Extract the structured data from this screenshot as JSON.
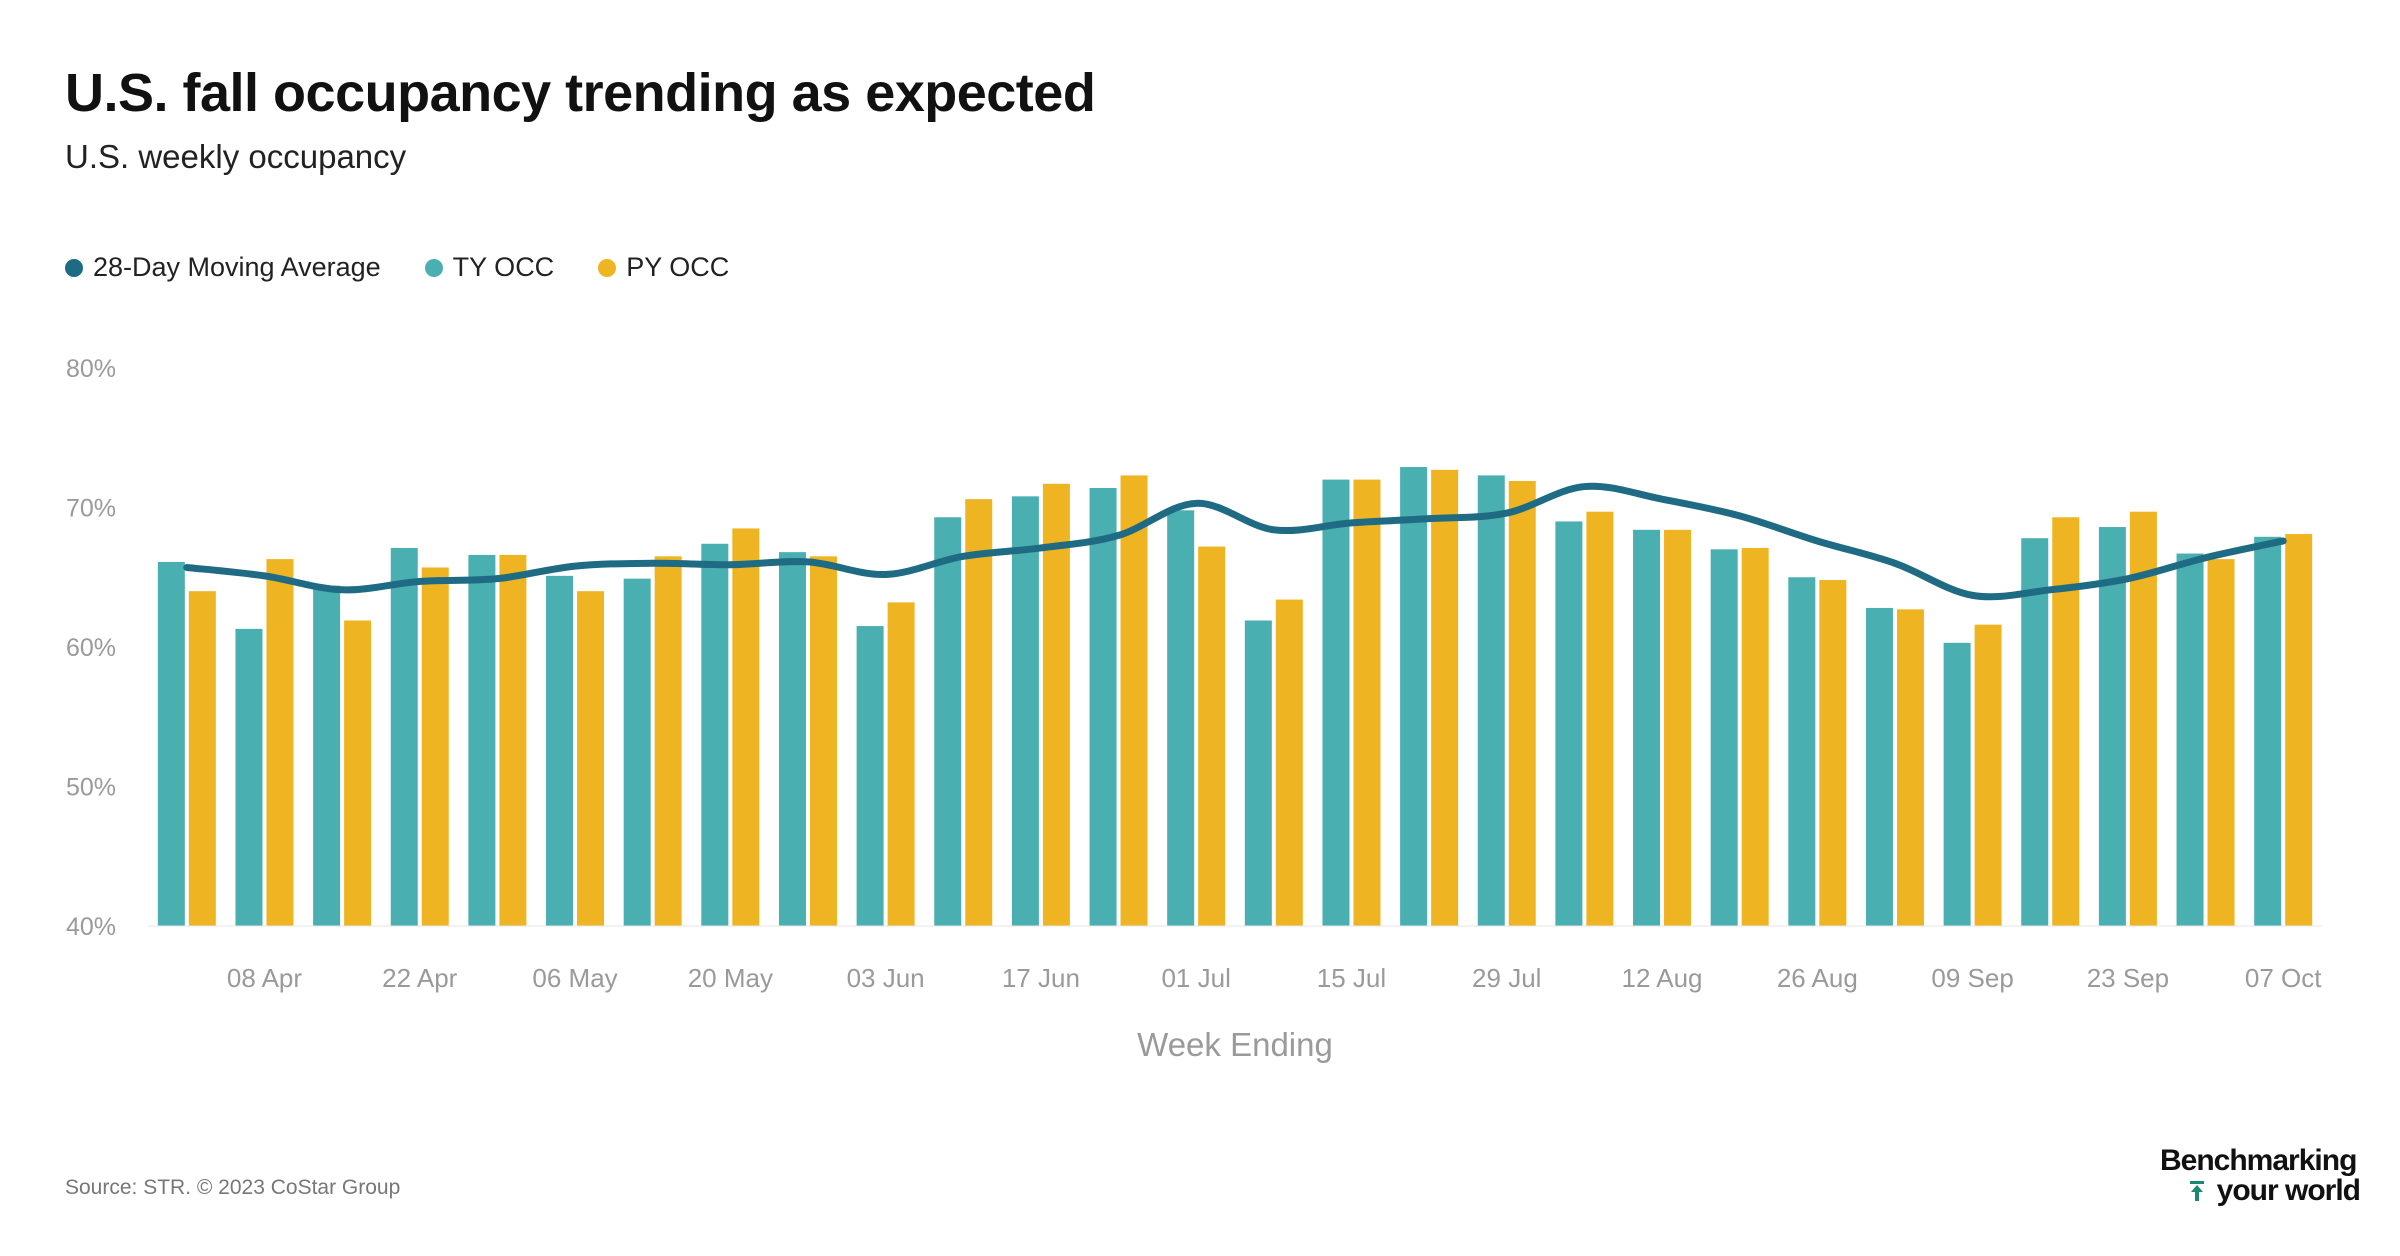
{
  "header": {
    "title": "U.S. fall occupancy trending as expected",
    "subtitle": "U.S. weekly occupancy"
  },
  "legend": {
    "items": [
      {
        "label": "28-Day Moving Average",
        "color": "#1f6b84"
      },
      {
        "label": "TY OCC",
        "color": "#4aafb0"
      },
      {
        "label": "PY OCC",
        "color": "#eeb422"
      }
    ]
  },
  "footer": {
    "source": "Source: STR. © 2023 CoStar Group",
    "brand_line1": "Benchmarking",
    "brand_line2": "your world"
  },
  "chart_data": {
    "type": "bar",
    "title": "U.S. fall occupancy trending as expected",
    "subtitle": "U.S. weekly occupancy",
    "xlabel": "Week Ending",
    "ylabel": "",
    "ylim": [
      40,
      80
    ],
    "yticks": [
      "40%",
      "50%",
      "60%",
      "70%",
      "80%"
    ],
    "ytick_values": [
      40,
      50,
      60,
      70,
      80
    ],
    "grid": false,
    "legend_position": "top-left",
    "week_count": 28,
    "xtick_labels": [
      {
        "week": 1,
        "label": "08 Apr"
      },
      {
        "week": 3,
        "label": "22 Apr"
      },
      {
        "week": 5,
        "label": "06 May"
      },
      {
        "week": 7,
        "label": "20 May"
      },
      {
        "week": 9,
        "label": "03 Jun"
      },
      {
        "week": 11,
        "label": "17 Jun"
      },
      {
        "week": 13,
        "label": "01 Jul"
      },
      {
        "week": 15,
        "label": "15 Jul"
      },
      {
        "week": 17,
        "label": "29 Jul"
      },
      {
        "week": 19,
        "label": "12 Aug"
      },
      {
        "week": 21,
        "label": "26 Aug"
      },
      {
        "week": 23,
        "label": "09 Sep"
      },
      {
        "week": 25,
        "label": "23 Sep"
      },
      {
        "week": 27,
        "label": "07 Oct"
      }
    ],
    "series": [
      {
        "name": "TY OCC",
        "kind": "bar",
        "color": "#4aafb0",
        "values": [
          66.1,
          61.3,
          64.4,
          67.1,
          66.6,
          65.1,
          64.9,
          67.4,
          66.8,
          61.5,
          69.3,
          70.8,
          71.4,
          69.8,
          61.9,
          72.0,
          72.9,
          72.3,
          69.0,
          68.4,
          67.0,
          65.0,
          62.8,
          60.3,
          67.8,
          68.6,
          66.7,
          67.9
        ]
      },
      {
        "name": "PY OCC",
        "kind": "bar",
        "color": "#eeb422",
        "values": [
          64.0,
          66.3,
          61.9,
          65.7,
          66.6,
          64.0,
          66.5,
          68.5,
          66.5,
          63.2,
          70.6,
          71.7,
          72.3,
          67.2,
          63.4,
          72.0,
          72.7,
          71.9,
          69.7,
          68.4,
          67.1,
          64.8,
          62.7,
          61.6,
          69.3,
          69.7,
          66.3,
          68.1
        ]
      },
      {
        "name": "28-Day Moving Average",
        "kind": "line",
        "color": "#1f6b84",
        "values": [
          65.7,
          65.1,
          64.1,
          64.7,
          64.9,
          65.8,
          66.0,
          65.9,
          66.1,
          65.2,
          66.5,
          67.1,
          68.0,
          70.3,
          68.4,
          68.9,
          69.2,
          69.6,
          71.5,
          70.6,
          69.4,
          67.6,
          66.0,
          63.7,
          64.1,
          64.9,
          66.4,
          67.6
        ]
      }
    ]
  }
}
